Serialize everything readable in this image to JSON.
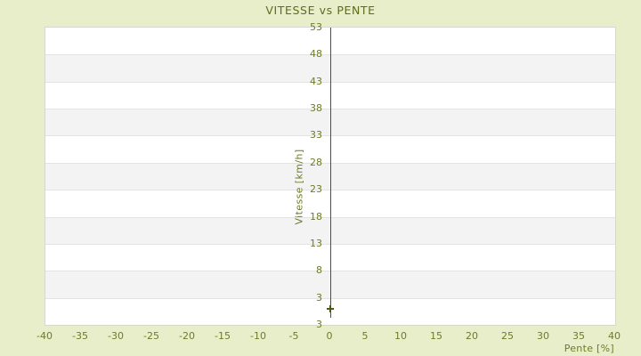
{
  "title": "VITESSE vs PENTE",
  "colors": {
    "background": "#e9eeca",
    "title_text": "#5f6b1c",
    "tick_text": "#6f7a28",
    "axis_line": "#4c590e",
    "band_white": "#ffffff",
    "band_gray": "#f3f3f3",
    "grid_line": "#e3e3e3",
    "plot_border": "#d6d6d6"
  },
  "chart_data": {
    "type": "scatter",
    "title": "VITESSE vs PENTE",
    "xlabel": "Pente [%]",
    "ylabel": "Vitesse [km/h]",
    "x_ticks": [
      -40,
      -35,
      -30,
      -25,
      -20,
      -15,
      -10,
      -5,
      0,
      5,
      10,
      15,
      20,
      25,
      30,
      35,
      40
    ],
    "y_ticks": [
      53,
      48,
      43,
      38,
      33,
      28,
      23,
      18,
      13,
      8,
      3
    ],
    "y_axis_bottom_label": "3",
    "xlim": [
      -40,
      40
    ],
    "ylim": [
      -2,
      53
    ],
    "y_axis_drawn_at_x": 0,
    "points": [
      {
        "x": 0,
        "y": 1
      }
    ],
    "marker_style": "plus",
    "legend": "none",
    "grid": "alternating-horizontal-bands"
  }
}
